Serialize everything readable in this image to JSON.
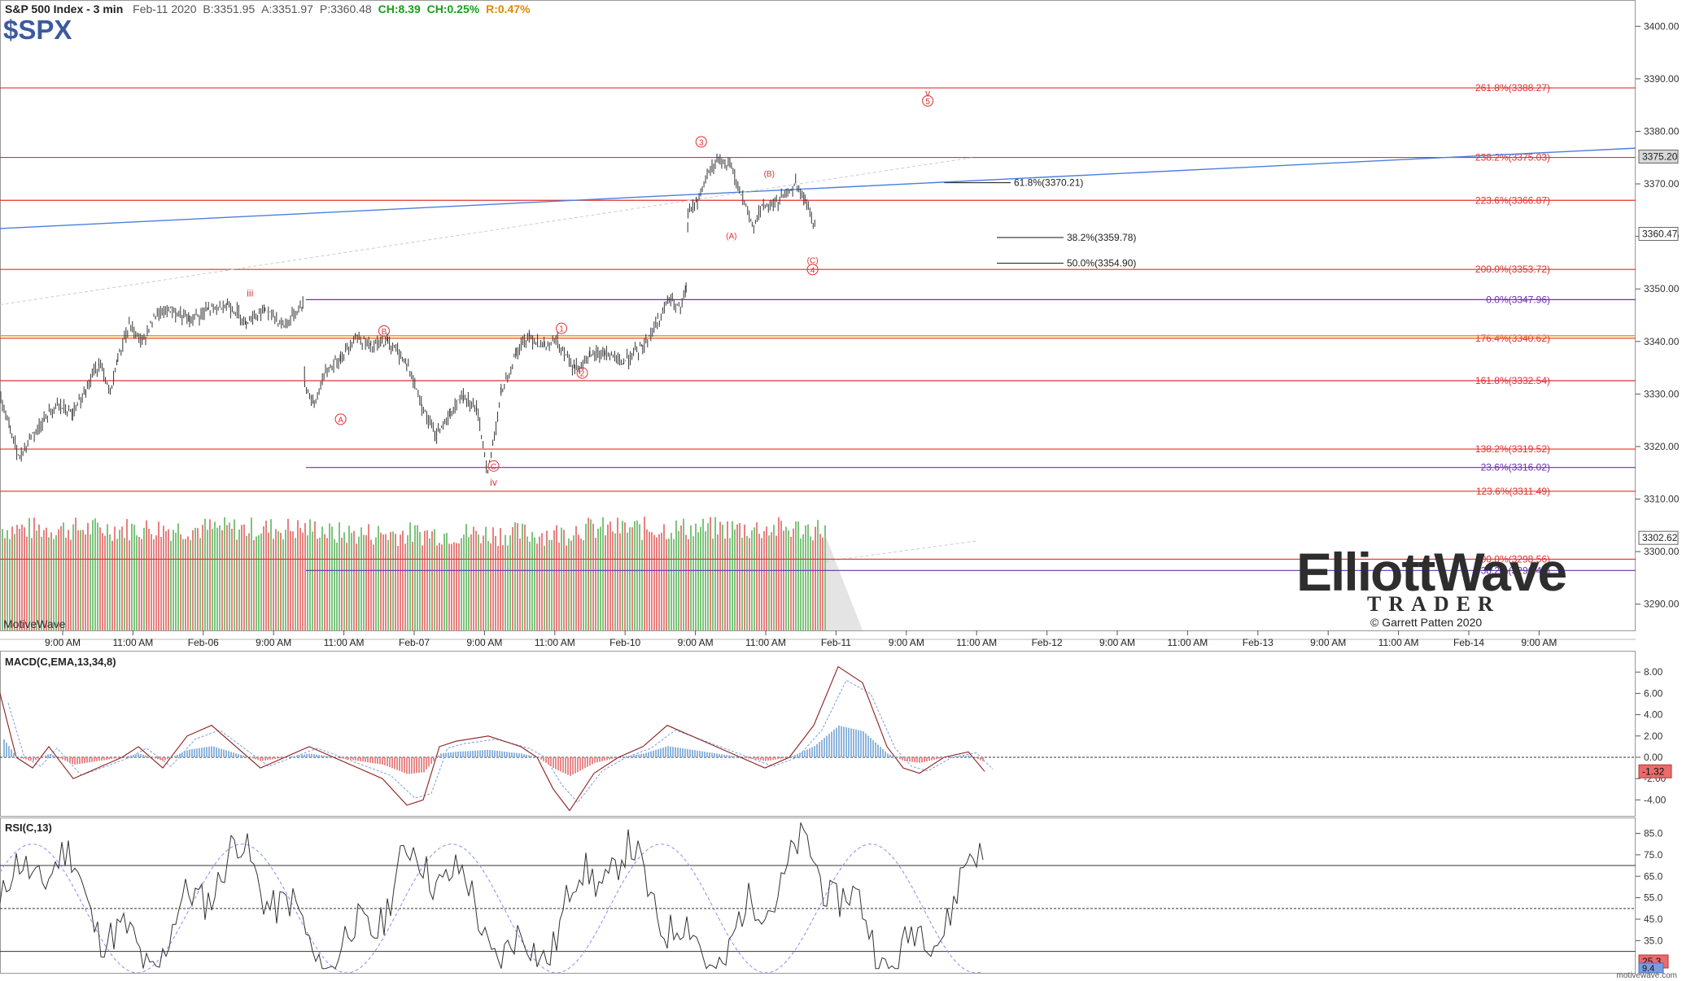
{
  "header": {
    "title": "S&P 500 Index - 3 min",
    "date": "Feb-11 2020",
    "bid": "B:3351.95",
    "ask": "A:3351.97",
    "price": "P:3360.48",
    "change": "CH:8.39",
    "change_pct": "CH:0.25%",
    "range": "R:0.47%",
    "symbol": "$SPX"
  },
  "colors": {
    "fib_red": "#e23030",
    "fib_purple": "#6a2fb4",
    "fib_orange": "#e8a200",
    "trendline_blue": "#4a7fe0",
    "price_bar": "#333333",
    "volume_up": "#7cc47c",
    "volume_down": "#e88080",
    "macd_line": "#8a1f1f",
    "macd_signal": "#7b9de0",
    "macd_hist_pos": "#8fb5dd",
    "macd_hist_neg": "#e88a8a",
    "rsi_line": "#333333",
    "rsi_signal": "#8c8cf0",
    "accent_green": "#1aa01a",
    "accent_orange": "#e08a00"
  },
  "chart_data": [
    {
      "type": "candlestick",
      "ylim": [
        3285,
        3405
      ],
      "y_ticks": [
        "3290.00",
        "3300.00",
        "3310.00",
        "3320.00",
        "3330.00",
        "3340.00",
        "3350.00",
        "3360.00",
        "3370.00",
        "3380.00",
        "3390.00",
        "3400.00"
      ],
      "x_ticks": [
        "9:00 AM",
        "11:00 AM",
        "Feb-06",
        "9:00 AM",
        "11:00 AM",
        "Feb-07",
        "9:00 AM",
        "11:00 AM",
        "Feb-10",
        "9:00 AM",
        "11:00 AM",
        "Feb-11",
        "9:00 AM",
        "11:00 AM",
        "Feb-12",
        "9:00 AM",
        "11:00 AM",
        "Feb-13",
        "9:00 AM",
        "11:00 AM",
        "Feb-14",
        "9:00 AM"
      ],
      "price_path": [
        [
          0,
          3329
        ],
        [
          0.5,
          3323
        ],
        [
          1,
          3318
        ],
        [
          1.6,
          3322
        ],
        [
          2.3,
          3325
        ],
        [
          3,
          3328
        ],
        [
          3.8,
          3326
        ],
        [
          4.5,
          3331
        ],
        [
          5.2,
          3336
        ],
        [
          5.8,
          3330
        ],
        [
          6.2,
          3337
        ],
        [
          6.8,
          3343
        ],
        [
          7.5,
          3340
        ],
        [
          8.2,
          3345
        ],
        [
          9,
          3346
        ],
        [
          10,
          3344
        ],
        [
          11,
          3346
        ],
        [
          12,
          3347
        ],
        [
          13,
          3344
        ],
        [
          14,
          3346
        ],
        [
          15,
          3343
        ],
        [
          16,
          3347
        ],
        [
          16.1,
          3332
        ],
        [
          16.6,
          3328
        ],
        [
          17.2,
          3334
        ],
        [
          18,
          3337
        ],
        [
          18.8,
          3341
        ],
        [
          19.6,
          3339
        ],
        [
          20.5,
          3340
        ],
        [
          21.5,
          3336
        ],
        [
          22.3,
          3328
        ],
        [
          23,
          3322
        ],
        [
          23.8,
          3326
        ],
        [
          24.5,
          3330
        ],
        [
          25.2,
          3327
        ],
        [
          25.8,
          3315
        ],
        [
          26.5,
          3330
        ],
        [
          27.3,
          3338
        ],
        [
          28,
          3341
        ],
        [
          28.8,
          3339
        ],
        [
          29.5,
          3340
        ],
        [
          30.4,
          3335
        ],
        [
          31.2,
          3337
        ],
        [
          32,
          3338
        ],
        [
          33,
          3336
        ],
        [
          34,
          3339
        ],
        [
          34.8,
          3344
        ],
        [
          35.4,
          3348
        ],
        [
          36,
          3346
        ],
        [
          36.3,
          3350
        ],
        [
          36.4,
          3364
        ],
        [
          36.9,
          3367
        ],
        [
          37.5,
          3372
        ],
        [
          38.1,
          3375
        ],
        [
          38.7,
          3373
        ],
        [
          39.3,
          3367
        ],
        [
          39.8,
          3362
        ],
        [
          40.4,
          3366
        ],
        [
          41,
          3366
        ],
        [
          41.6,
          3368
        ],
        [
          42.1,
          3370
        ],
        [
          42.6,
          3367
        ],
        [
          43.2,
          3361
        ]
      ],
      "price_close": 3360.48,
      "price_tag_high": "3375.20",
      "price_tag_last": "3360.47",
      "volume_tag": "3302.62",
      "fib_lines": [
        {
          "label": "261.8%(3388.27)",
          "value": 3388.27,
          "color": "red"
        },
        {
          "label": "238.2%(3375.03)",
          "value": 3375.03,
          "color": "red"
        },
        {
          "label": "223.6%(3366.87)",
          "value": 3366.87,
          "color": "red"
        },
        {
          "label": "200.0%(3353.72)",
          "value": 3353.72,
          "color": "red"
        },
        {
          "label": "0.0%(3347.96)",
          "value": 3347.96,
          "color": "purple"
        },
        {
          "label": "176.4%(3340.62)",
          "value": 3340.62,
          "color": "red"
        },
        {
          "label": "161.8%(3332.54)",
          "value": 3332.54,
          "color": "red"
        },
        {
          "label": "138.2%(3319.52)",
          "value": 3319.52,
          "color": "red"
        },
        {
          "label": "23.6%(3316.02)",
          "value": 3316.02,
          "color": "purple"
        },
        {
          "label": "123.6%(3311.49)",
          "value": 3311.49,
          "color": "red"
        },
        {
          "label": "100.0%(3298.56)",
          "value": 3298.56,
          "color": "red"
        },
        {
          "label": "38.2%(3296.41)",
          "value": 3296.41,
          "color": "purple"
        }
      ],
      "local_fibs": [
        {
          "label": "61.8%(3370.21)",
          "value": 3370.21
        },
        {
          "label": "38.2%(3359.78)",
          "value": 3359.78
        },
        {
          "label": "50.0%(3354.90)",
          "value": 3354.9
        }
      ],
      "wave_labels": [
        {
          "text": "iii",
          "x": 13.2,
          "y": 3349.2
        },
        {
          "text": "B",
          "x": 20.3,
          "y": 3342
        },
        {
          "text": "A",
          "x": 18.0,
          "y": 3325.2
        },
        {
          "text": "C",
          "x": 26.1,
          "y": 3316.3
        },
        {
          "text": "iv",
          "x": 26.1,
          "y": 3313.2
        },
        {
          "text": "1",
          "x": 29.7,
          "y": 3342.5
        },
        {
          "text": "2",
          "x": 30.8,
          "y": 3334
        },
        {
          "text": "3",
          "x": 37.1,
          "y": 3378
        },
        {
          "text": "(B)",
          "x": 40.7,
          "y": 3372
        },
        {
          "text": "(A)",
          "x": 38.7,
          "y": 3360.2
        },
        {
          "text": "(C)",
          "x": 43.0,
          "y": 3355.5
        },
        {
          "text": "4",
          "x": 43.0,
          "y": 3353.7
        },
        {
          "text": "v",
          "x": 49.1,
          "y": 3387.3
        },
        {
          "text": "5",
          "x": 49.1,
          "y": 3385.8
        }
      ]
    },
    {
      "type": "line",
      "title": "MACD(C,EMA,13,34,8)",
      "ylim": [
        -5.5,
        10
      ],
      "y_ticks": [
        "8.00",
        "6.00",
        "4.00",
        "2.00",
        "0.00",
        "-2.00",
        "-4.00"
      ],
      "last_value": "-1.32"
    },
    {
      "type": "line",
      "title": "RSI(C,13)",
      "ylim": [
        20,
        92
      ],
      "y_ticks": [
        "85.0",
        "75.0",
        "65.0",
        "55.0",
        "45.0",
        "35.0"
      ],
      "levels": [
        70,
        50,
        30
      ],
      "last_value_1": "25.3",
      "last_value_2": "9.4"
    }
  ],
  "watermark": "MotiveWave",
  "logo": {
    "brand": "ElliottWave",
    "subtitle": "TRADER",
    "copyright": "© Garrett Patten 2020"
  },
  "footer": "motivewave.com"
}
